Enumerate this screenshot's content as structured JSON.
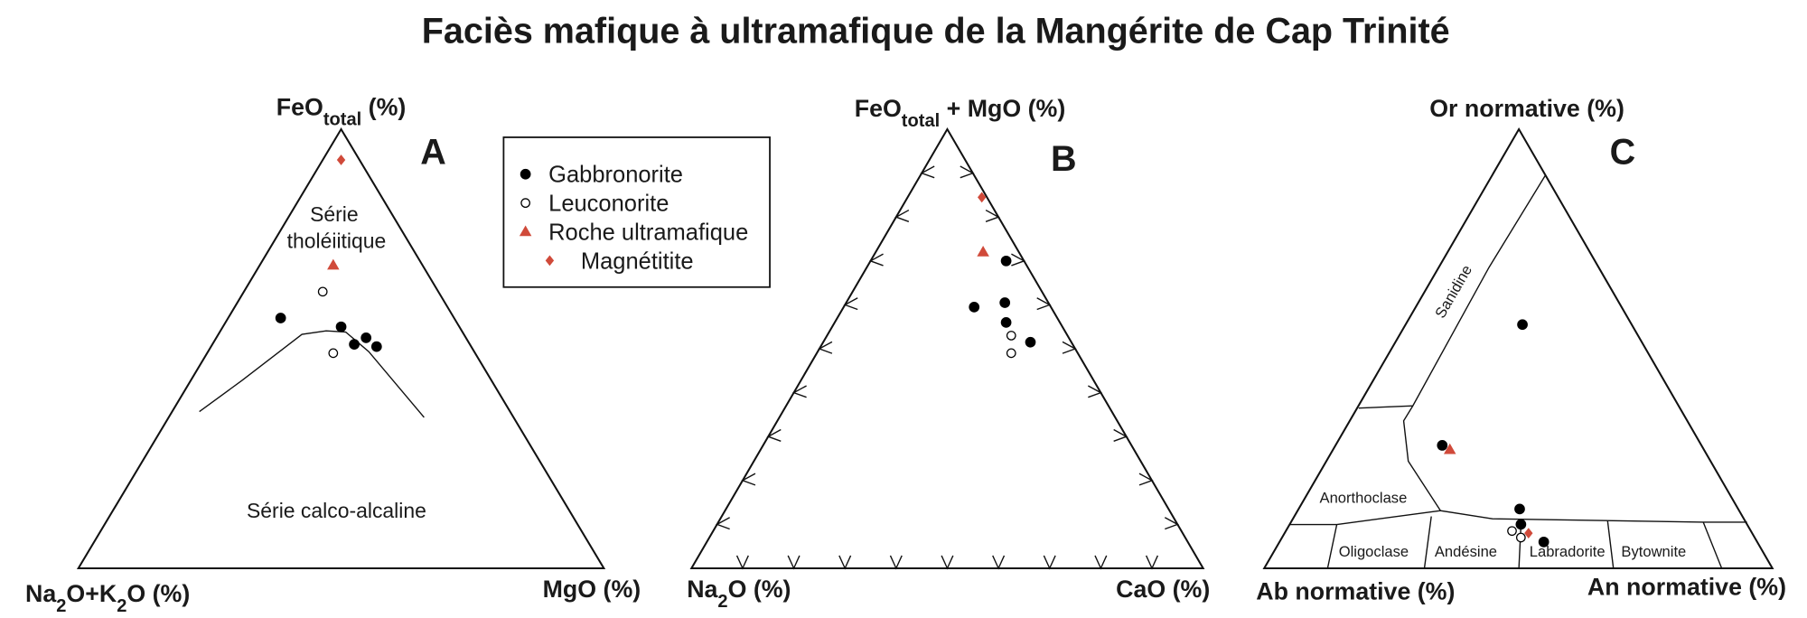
{
  "title": "Faciès mafique à ultramafique de la Mangérite de Cap Trinité",
  "legend": [
    {
      "name": "Gabbronorite",
      "color": "#000000",
      "marker": "circle"
    },
    {
      "name": "Leuconorite",
      "color": "#000000",
      "marker": "open-circle"
    },
    {
      "name": "Roche ultramafique",
      "color": "#d04a3a",
      "marker": "triangle"
    },
    {
      "name": "Magnétitite",
      "color": "#d04a3a",
      "marker": "diamond"
    }
  ],
  "chart_data": [
    {
      "type": "ternary",
      "panel": "A",
      "apex_label": [
        {
          "text": "FeO"
        },
        {
          "text": "total",
          "sub": true
        },
        {
          "text": " (%)"
        }
      ],
      "left_label": [
        {
          "text": "Na"
        },
        {
          "text": "2",
          "sub": true
        },
        {
          "text": "O+K"
        },
        {
          "text": "2",
          "sub": true
        },
        {
          "text": "O (%)"
        }
      ],
      "right_label": [
        {
          "text": "MgO (%)"
        }
      ],
      "fields": [
        "Série",
        "tholéiitique",
        "Série calco-alcaline"
      ],
      "series": [
        {
          "values": [
            [
              57,
              33,
              10
            ],
            [
              55,
              22.5,
              22.5
            ],
            [
              51,
              22,
              27
            ],
            [
              52.5,
              19,
              28.5
            ],
            [
              50.5,
              18,
              31.5
            ]
          ]
        },
        {
          "values": [
            [
              63,
              22,
              15
            ],
            [
              49,
              27,
              24
            ]
          ]
        },
        {
          "values": [
            [
              69,
              17,
              14
            ]
          ]
        },
        {
          "values": [
            [
              93,
              3.5,
              3.5
            ]
          ]
        }
      ]
    },
    {
      "type": "ternary",
      "panel": "B",
      "apex_label": [
        {
          "text": "FeO"
        },
        {
          "text": "total",
          "sub": true
        },
        {
          "text": " + MgO (%)"
        }
      ],
      "left_label": [
        {
          "text": "Na"
        },
        {
          "text": "2",
          "sub": true
        },
        {
          "text": "O (%)"
        }
      ],
      "right_label": [
        {
          "text": "CaO (%)"
        }
      ],
      "fields": [],
      "series": [
        {
          "values": [
            [
              70,
              3.5,
              26.5
            ],
            [
              59.5,
              15,
              25.5
            ],
            [
              60.5,
              8.5,
              31
            ],
            [
              56,
              10.5,
              33.5
            ],
            [
              51.5,
              8,
              40.5
            ]
          ]
        },
        {
          "values": [
            [
              53,
              11,
              36
            ],
            [
              49,
              13,
              38
            ]
          ]
        },
        {
          "values": [
            [
              72,
              7,
              21
            ]
          ]
        },
        {
          "values": [
            [
              84.5,
              1,
              14.5
            ]
          ]
        }
      ]
    },
    {
      "type": "ternary",
      "panel": "C",
      "apex_label": [
        {
          "text": "Or normative (%)"
        }
      ],
      "left_label": [
        {
          "text": "Ab normative (%)"
        }
      ],
      "right_label": [
        {
          "text": "An normative (%)"
        }
      ],
      "fields": [
        "Sanidine",
        "Anorthoclase",
        "Oligoclase",
        "Andésine",
        "Labradorite",
        "Bytownite"
      ],
      "series": [
        {
          "values": [
            [
              55.5,
              21.5,
              23
            ],
            [
              28,
              51,
              21
            ],
            [
              13.5,
              43,
              43.5
            ],
            [
              10,
              44.5,
              45.5
            ],
            [
              6,
              42,
              52
            ]
          ]
        },
        {
          "values": [
            [
              8.5,
              47,
              44.5
            ],
            [
              7,
              46,
              47
            ]
          ]
        },
        {
          "values": [
            [
              27,
              50,
              23
            ]
          ]
        },
        {
          "values": [
            [
              8,
              44,
              48
            ]
          ]
        }
      ]
    }
  ]
}
